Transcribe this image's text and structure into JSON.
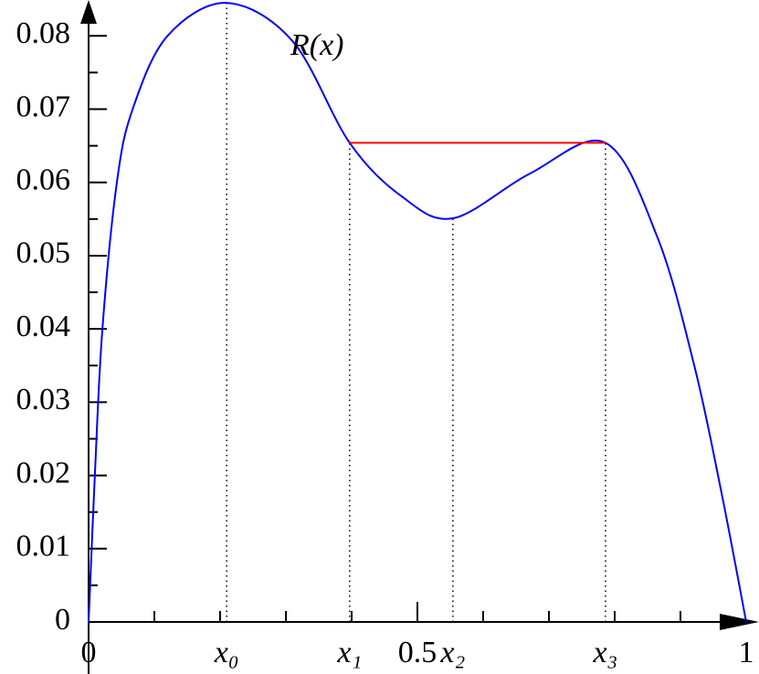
{
  "chart_data": {
    "type": "line",
    "x": [
      0,
      0.01,
      0.021,
      0.043,
      0.067,
      0.12,
      0.21,
      0.31,
      0.397,
      0.476,
      0.554,
      0.671,
      0.786,
      0.865,
      0.921,
      0.9625,
      1
    ],
    "series": [
      {
        "name": "R(x)",
        "color": "#0000ff",
        "values": [
          0,
          0.021,
          0.04,
          0.06,
          0.07,
          0.08,
          0.0845,
          0.0793,
          0.0654,
          0.0581,
          0.0551,
          0.0612,
          0.0654,
          0.0525,
          0.035,
          0.0176,
          0
        ]
      }
    ],
    "segment": {
      "color": "#ff0000",
      "x": [
        0.397,
        0.786
      ],
      "values": [
        0.0654,
        0.0654
      ]
    },
    "guides": {
      "x": [
        0.21,
        0.397,
        0.554,
        0.786
      ],
      "values": [
        0.0845,
        0.0654,
        0.0551,
        0.0654
      ]
    },
    "xlim": [
      0,
      1
    ],
    "ylim": [
      0,
      0.0849
    ],
    "xticks": [
      0,
      {
        "value": 0.21,
        "label": "x₀"
      },
      {
        "value": 0.397,
        "label": "x₁"
      },
      0.5,
      {
        "value": 0.554,
        "label": "x₂"
      },
      {
        "value": 0.786,
        "label": "x₃"
      },
      1
    ],
    "xminor_ticks": [
      0.1,
      0.2,
      0.3,
      0.4,
      0.6,
      0.7,
      0.8,
      0.9
    ],
    "yticks": [
      0,
      0.01,
      0.02,
      0.03,
      0.04,
      0.05,
      0.06,
      0.07,
      0.08
    ],
    "yminor_ticks": [
      0.005,
      0.015,
      0.025,
      0.035,
      0.045,
      0.055,
      0.065,
      0.075
    ],
    "grid": false
  }
}
